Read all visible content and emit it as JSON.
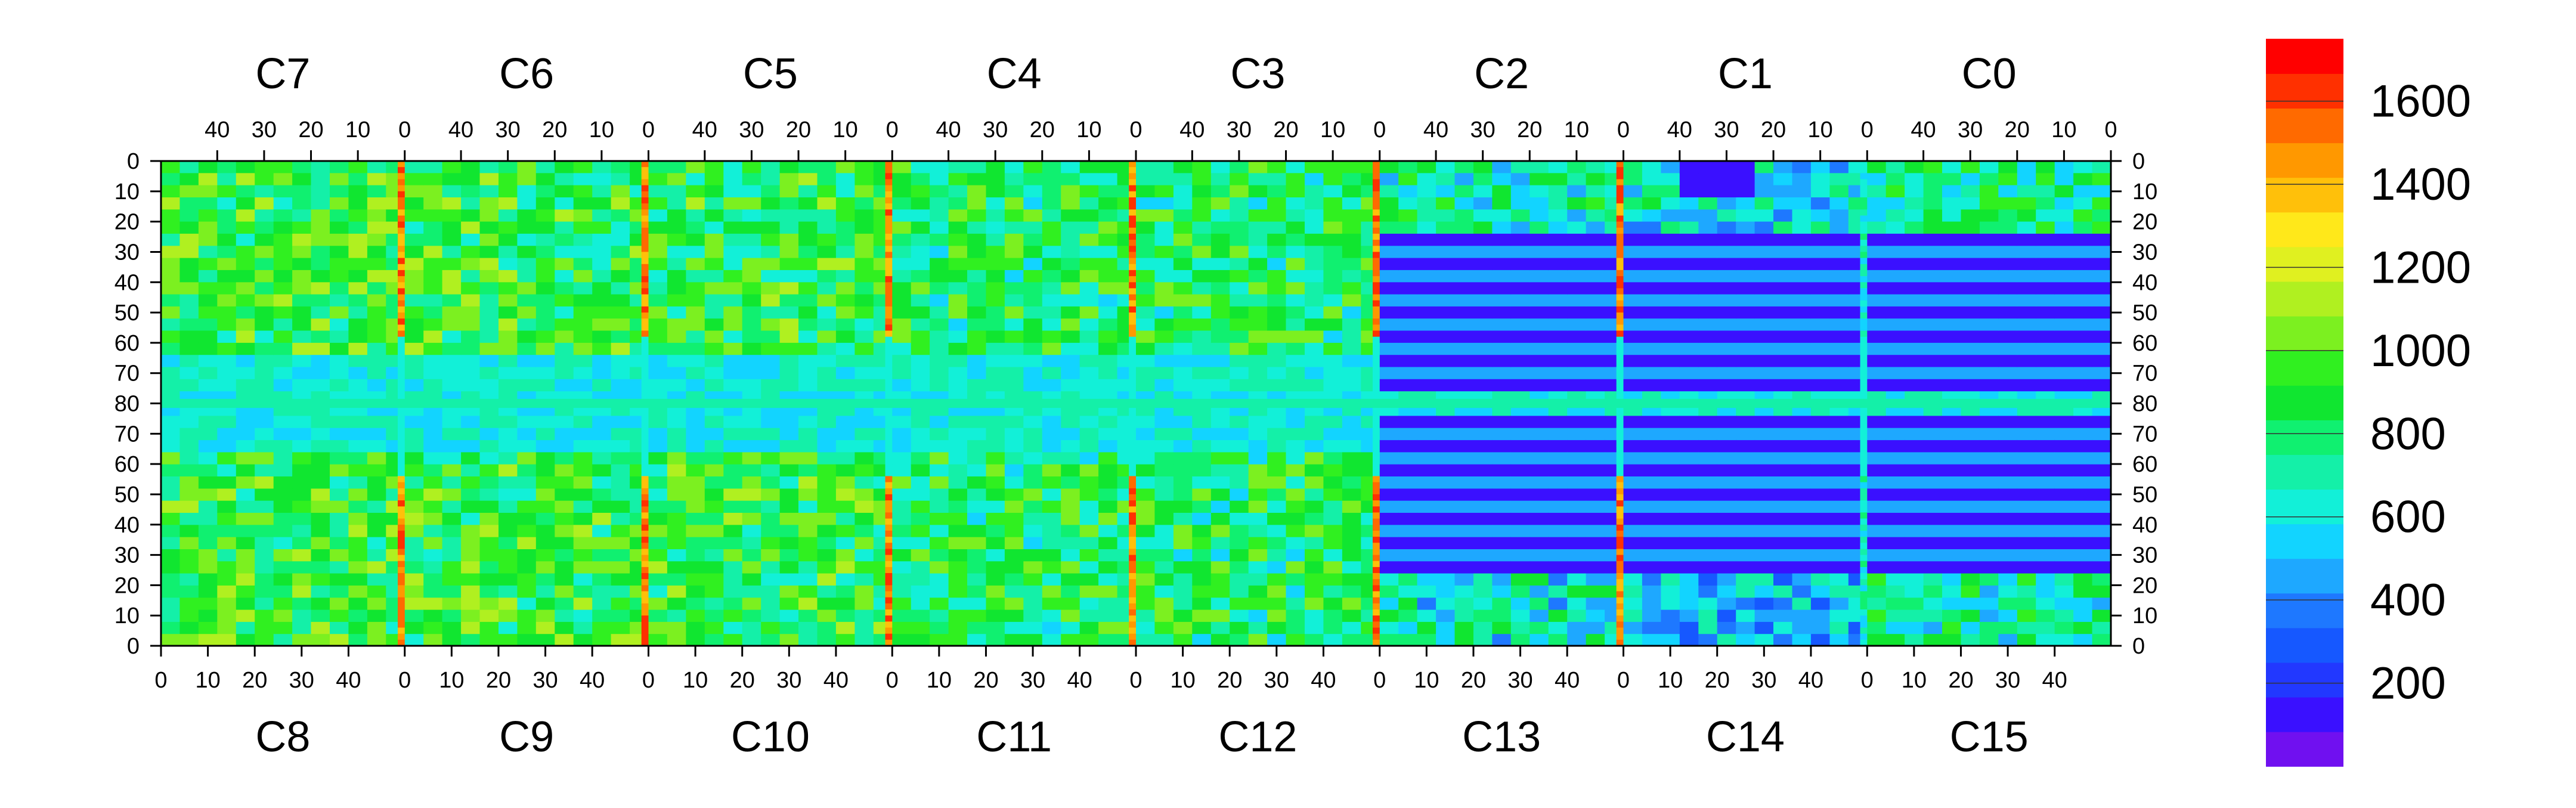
{
  "chart_data": {
    "type": "heatmap",
    "title": "",
    "xlabel": "",
    "ylabel": "",
    "chips_top": [
      "C7",
      "C6",
      "C5",
      "C4",
      "C3",
      "C2",
      "C1",
      "C0"
    ],
    "chips_bottom": [
      "C8",
      "C9",
      "C10",
      "C11",
      "C12",
      "C13",
      "C14",
      "C15"
    ],
    "top_x_tick_labels": [
      "40",
      "30",
      "20",
      "10",
      "0"
    ],
    "bottom_x_tick_labels": [
      "0",
      "10",
      "20",
      "30",
      "40"
    ],
    "y_tick_labels": [
      "0",
      "10",
      "20",
      "30",
      "40",
      "50",
      "60",
      "70",
      "80",
      "70",
      "60",
      "50",
      "40",
      "30",
      "20",
      "10",
      "0"
    ],
    "columns_per_chip": 52,
    "rows_per_half": 80,
    "colorbar": {
      "min": 0,
      "max": 1750,
      "tick_labels": [
        "200",
        "400",
        "600",
        "800",
        "1000",
        "1200",
        "1400",
        "1600"
      ],
      "tick_values": [
        200,
        400,
        600,
        800,
        1000,
        1200,
        1400,
        1600
      ],
      "colors": [
        "#7010f0",
        "#3a10ff",
        "#2238ff",
        "#1658ff",
        "#1e78ff",
        "#1ea8ff",
        "#12d4ff",
        "#12f0d8",
        "#14f0a8",
        "#10f070",
        "#10e630",
        "#30f020",
        "#7cf020",
        "#b0f020",
        "#e0f020",
        "#ffe81a",
        "#ffc00a",
        "#ff9800",
        "#ff6a00",
        "#ff3000",
        "#ff0000"
      ]
    },
    "regions": {
      "hot_column_value": 1650,
      "center_row_value": 700,
      "dead_block_value": 120,
      "chip_base_values": [
        900,
        880,
        860,
        820,
        800,
        700,
        600,
        750
      ],
      "bottom_chip_base_values": [
        900,
        880,
        870,
        820,
        800,
        650,
        500,
        700
      ]
    }
  }
}
